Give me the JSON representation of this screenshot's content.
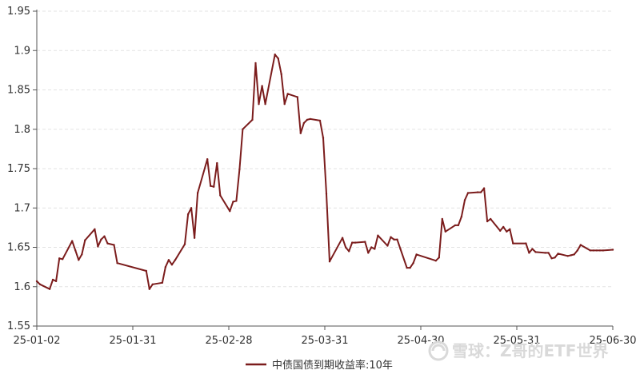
{
  "chart_data": {
    "type": "line",
    "title": "",
    "xlabel": "",
    "ylabel": "",
    "x_ticks": [
      "25-01-02",
      "25-01-31",
      "25-02-28",
      "25-03-31",
      "25-04-30",
      "25-05-31",
      "25-06-30"
    ],
    "y_ticks": [
      "1.55",
      "1.6",
      "1.65",
      "1.7",
      "1.75",
      "1.8",
      "1.85",
      "1.9",
      "1.95"
    ],
    "ylim": [
      1.55,
      1.95
    ],
    "grid": "horizontal",
    "legend_position": "bottom-center",
    "series": [
      {
        "name": "中债国债到期收益率:10年",
        "color": "#7b1c1c",
        "x": [
          "2025-01-02",
          "2025-01-03",
          "2025-01-06",
          "2025-01-07",
          "2025-01-08",
          "2025-01-09",
          "2025-01-10",
          "2025-01-13",
          "2025-01-14",
          "2025-01-15",
          "2025-01-16",
          "2025-01-17",
          "2025-01-20",
          "2025-01-21",
          "2025-01-22",
          "2025-01-23",
          "2025-01-24",
          "2025-01-26",
          "2025-01-27",
          "2025-02-05",
          "2025-02-06",
          "2025-02-07",
          "2025-02-10",
          "2025-02-11",
          "2025-02-12",
          "2025-02-13",
          "2025-02-14",
          "2025-02-17",
          "2025-02-18",
          "2025-02-19",
          "2025-02-20",
          "2025-02-21",
          "2025-02-24",
          "2025-02-25",
          "2025-02-26",
          "2025-02-27",
          "2025-02-28",
          "2025-03-03",
          "2025-03-04",
          "2025-03-05",
          "2025-03-06",
          "2025-03-07",
          "2025-03-10",
          "2025-03-11",
          "2025-03-12",
          "2025-03-13",
          "2025-03-14",
          "2025-03-17",
          "2025-03-18",
          "2025-03-19",
          "2025-03-20",
          "2025-03-21",
          "2025-03-24",
          "2025-03-25",
          "2025-03-26",
          "2025-03-27",
          "2025-03-28",
          "2025-03-31",
          "2025-04-01",
          "2025-04-02",
          "2025-04-03",
          "2025-04-07",
          "2025-04-08",
          "2025-04-09",
          "2025-04-10",
          "2025-04-11",
          "2025-04-14",
          "2025-04-15",
          "2025-04-16",
          "2025-04-17",
          "2025-04-18",
          "2025-04-21",
          "2025-04-22",
          "2025-04-23",
          "2025-04-24",
          "2025-04-25",
          "2025-04-27",
          "2025-04-28",
          "2025-04-29",
          "2025-04-30",
          "2025-05-06",
          "2025-05-07",
          "2025-05-08",
          "2025-05-09",
          "2025-05-12",
          "2025-05-13",
          "2025-05-14",
          "2025-05-15",
          "2025-05-16",
          "2025-05-19",
          "2025-05-20",
          "2025-05-21",
          "2025-05-22",
          "2025-05-23",
          "2025-05-26",
          "2025-05-27",
          "2025-05-28",
          "2025-05-29",
          "2025-05-30",
          "2025-06-03",
          "2025-06-04",
          "2025-06-05",
          "2025-06-06",
          "2025-06-09",
          "2025-06-10",
          "2025-06-11",
          "2025-06-12",
          "2025-06-13",
          "2025-06-16",
          "2025-06-17",
          "2025-06-18",
          "2025-06-19",
          "2025-06-20",
          "2025-06-23",
          "2025-06-24",
          "2025-06-25",
          "2025-06-26",
          "2025-06-27",
          "2025-06-30"
        ],
        "values": [
          1.607,
          1.603,
          1.597,
          1.609,
          1.607,
          1.636,
          1.635,
          1.658,
          1.646,
          1.634,
          1.641,
          1.659,
          1.673,
          1.651,
          1.66,
          1.664,
          1.655,
          1.653,
          1.63,
          1.62,
          1.597,
          1.603,
          1.605,
          1.625,
          1.634,
          1.628,
          1.634,
          1.654,
          1.692,
          1.7,
          1.662,
          1.719,
          1.762,
          1.728,
          1.727,
          1.757,
          1.716,
          1.696,
          1.708,
          1.709,
          1.749,
          1.8,
          1.812,
          1.884,
          1.832,
          1.855,
          1.832,
          1.895,
          1.89,
          1.87,
          1.832,
          1.845,
          1.841,
          1.795,
          1.808,
          1.812,
          1.813,
          1.811,
          1.789,
          1.718,
          1.632,
          1.662,
          1.65,
          1.645,
          1.656,
          1.656,
          1.657,
          1.643,
          1.65,
          1.648,
          1.665,
          1.652,
          1.663,
          1.66,
          1.66,
          1.648,
          1.624,
          1.624,
          1.63,
          1.641,
          1.633,
          1.637,
          1.686,
          1.67,
          1.678,
          1.678,
          1.689,
          1.71,
          1.719,
          1.72,
          1.72,
          1.725,
          1.683,
          1.686,
          1.671,
          1.676,
          1.67,
          1.673,
          1.655,
          1.655,
          1.643,
          1.648,
          1.644,
          1.643,
          1.643,
          1.636,
          1.637,
          1.642,
          1.639,
          1.64,
          1.641,
          1.646,
          1.653,
          1.646,
          1.646,
          1.646,
          1.646,
          1.646,
          1.647
        ]
      }
    ],
    "watermark": "雪球：Z哥的ETF世界"
  }
}
